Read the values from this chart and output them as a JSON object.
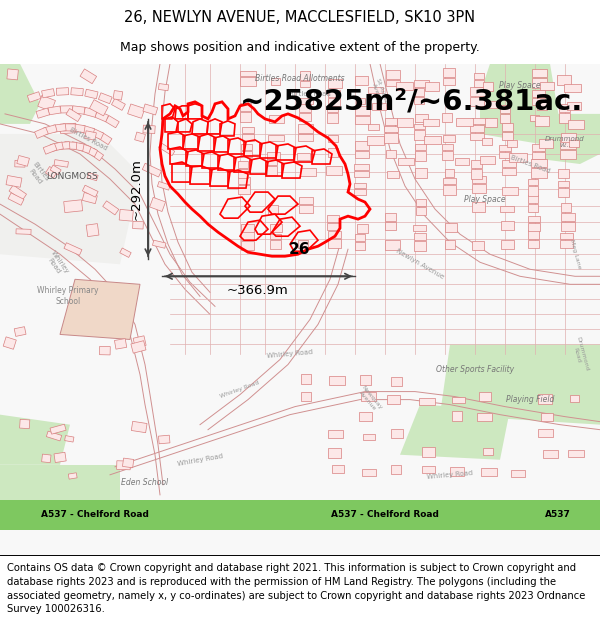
{
  "title_line1": "26, NEWLYN AVENUE, MACCLESFIELD, SK10 3PN",
  "title_line2": "Map shows position and indicative extent of the property.",
  "area_text": "~25825m²/~6.381ac.",
  "width_text": "~366.9m",
  "height_text": "~292.0m",
  "label_26": "26",
  "footer_text": "Contains OS data © Crown copyright and database right 2021. This information is subject to Crown copyright and database rights 2023 and is reproduced with the permission of HM Land Registry. The polygons (including the associated geometry, namely x, y co-ordinates) are subject to Crown copyright and database rights 2023 Ordnance Survey 100026316.",
  "map_bg": "#ffffff",
  "building_light": "#f5d5d5",
  "building_outline": "#e08080",
  "highlight_red": "#ff0000",
  "road_green": "#7cc060",
  "road_green_text": "#000000",
  "title_fs": 10.5,
  "subtitle_fs": 9,
  "area_fs": 21,
  "dim_fs": 9.5,
  "footer_fs": 7.2,
  "label_fs": 11
}
